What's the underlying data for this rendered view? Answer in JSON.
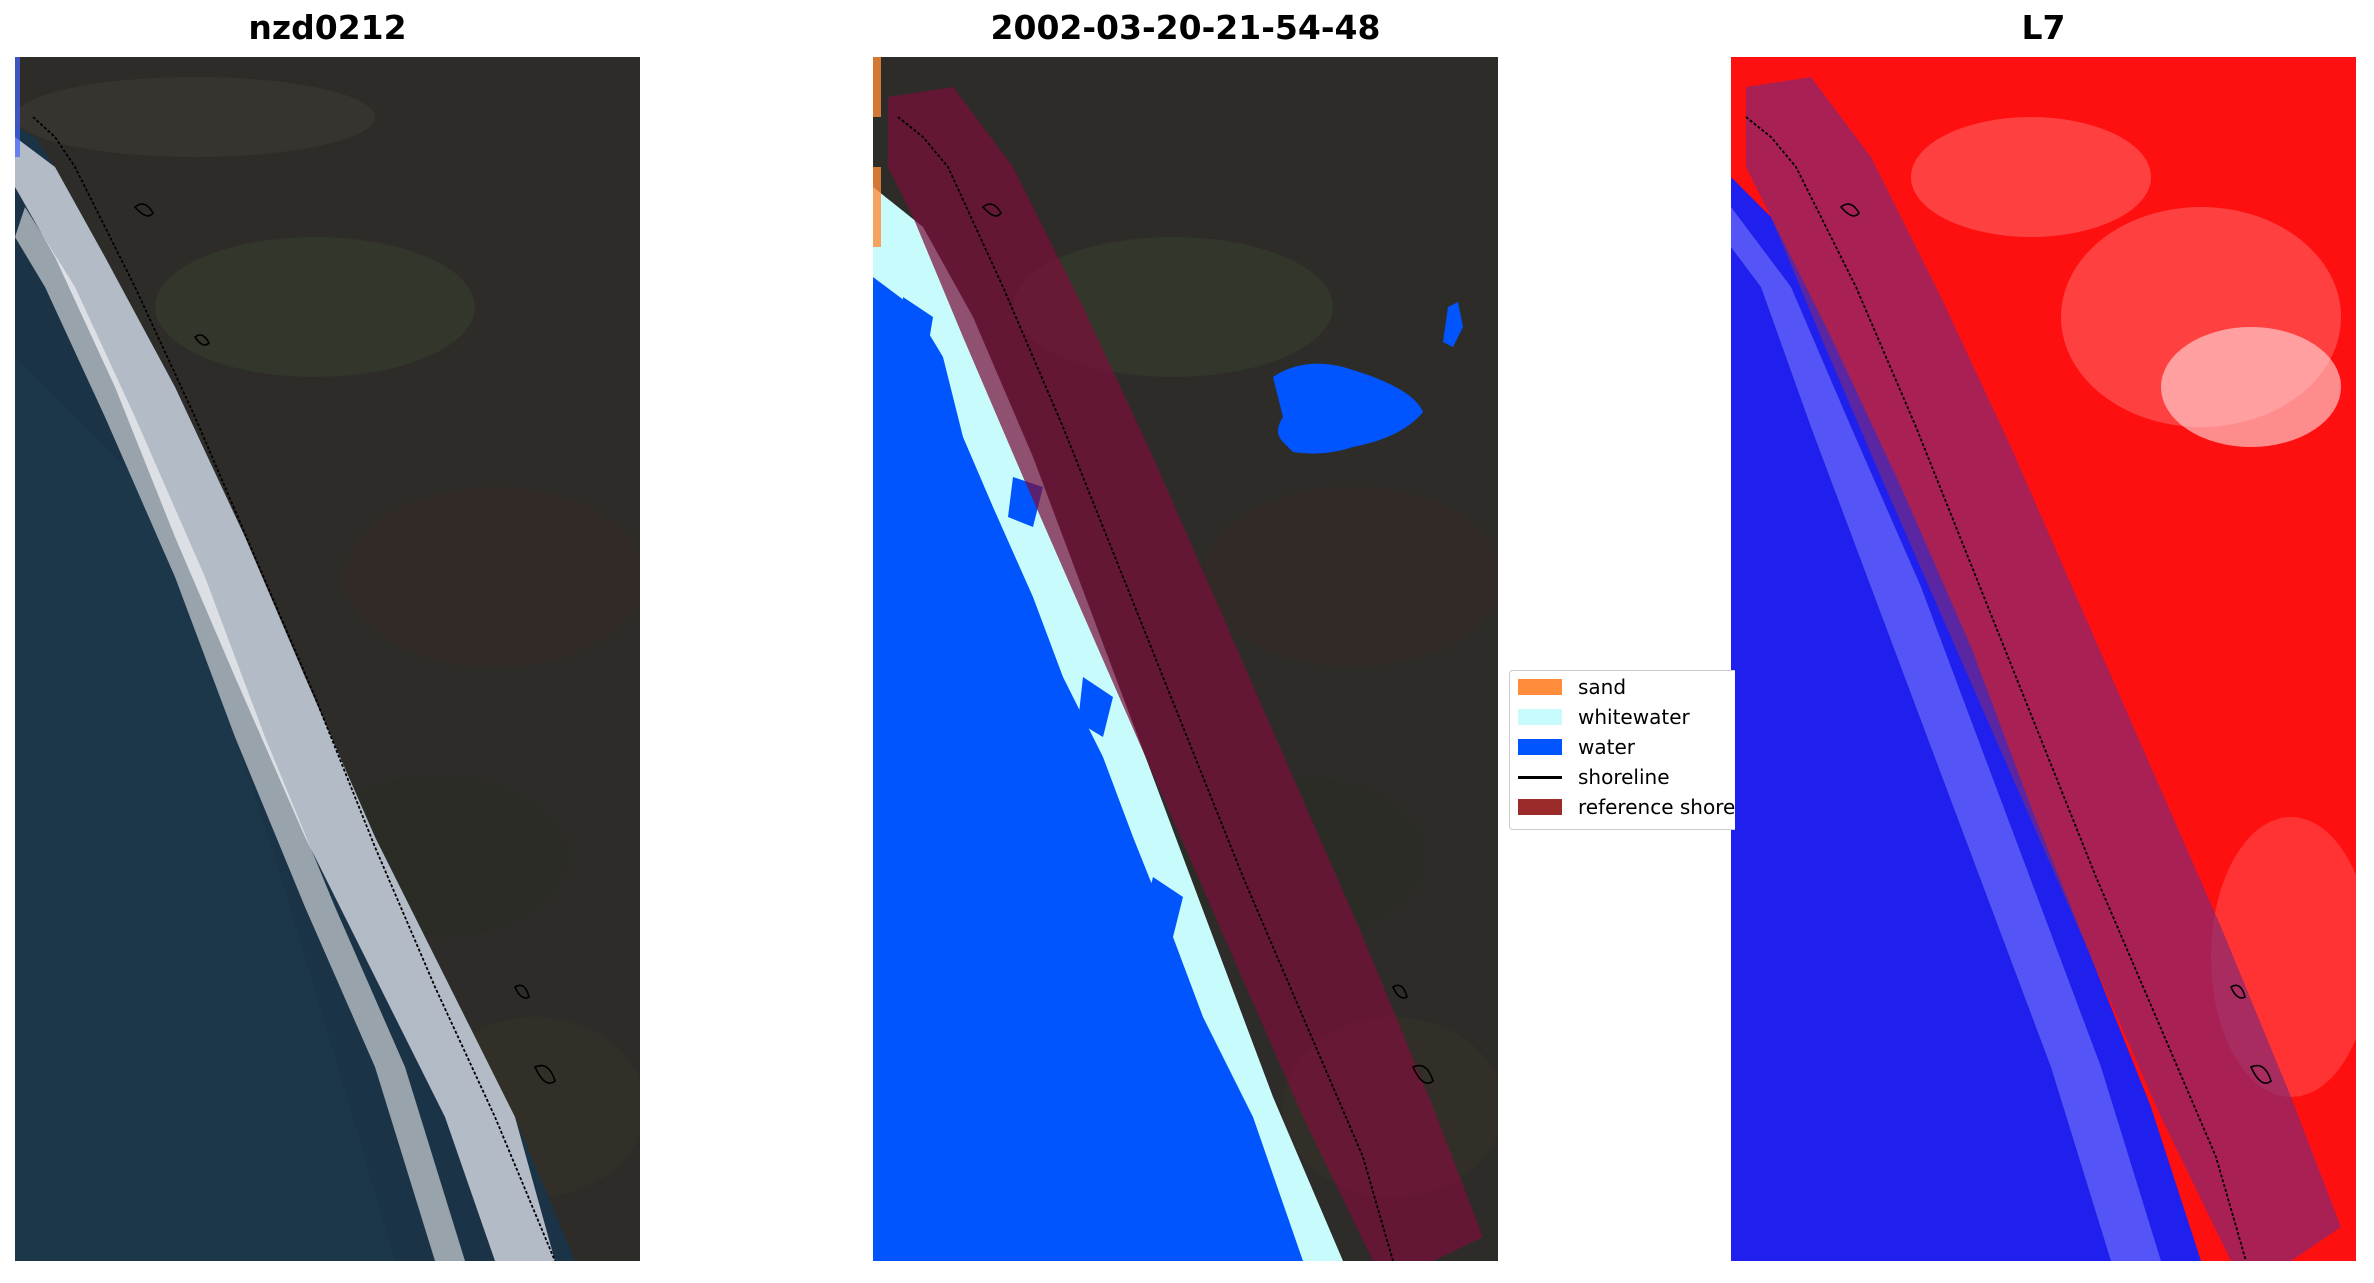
{
  "panels": [
    {
      "title": "nzd0212"
    },
    {
      "title": "2002-03-20-21-54-48"
    },
    {
      "title": "L7"
    }
  ],
  "legend": {
    "items": [
      {
        "label": "sand",
        "color": "#ff8c3a",
        "kind": "patch"
      },
      {
        "label": "whitewater",
        "color": "#c8fcfc",
        "kind": "patch"
      },
      {
        "label": "water",
        "color": "#0055ff",
        "kind": "patch"
      },
      {
        "label": "shoreline",
        "color": "#000000",
        "kind": "line"
      },
      {
        "label": "reference shoreline buffer",
        "color": "#9b2a2a",
        "kind": "patch"
      }
    ]
  },
  "colors": {
    "land": "#2d2c28",
    "ocean": "#1b3346",
    "surf": "#e6eaf2",
    "classified_water": "#0055ff",
    "whitewater": "#c8fcfc",
    "buffer": "#7a0f3a",
    "mndwi_land": "#ff1010",
    "mndwi_water": "#2020ee"
  }
}
